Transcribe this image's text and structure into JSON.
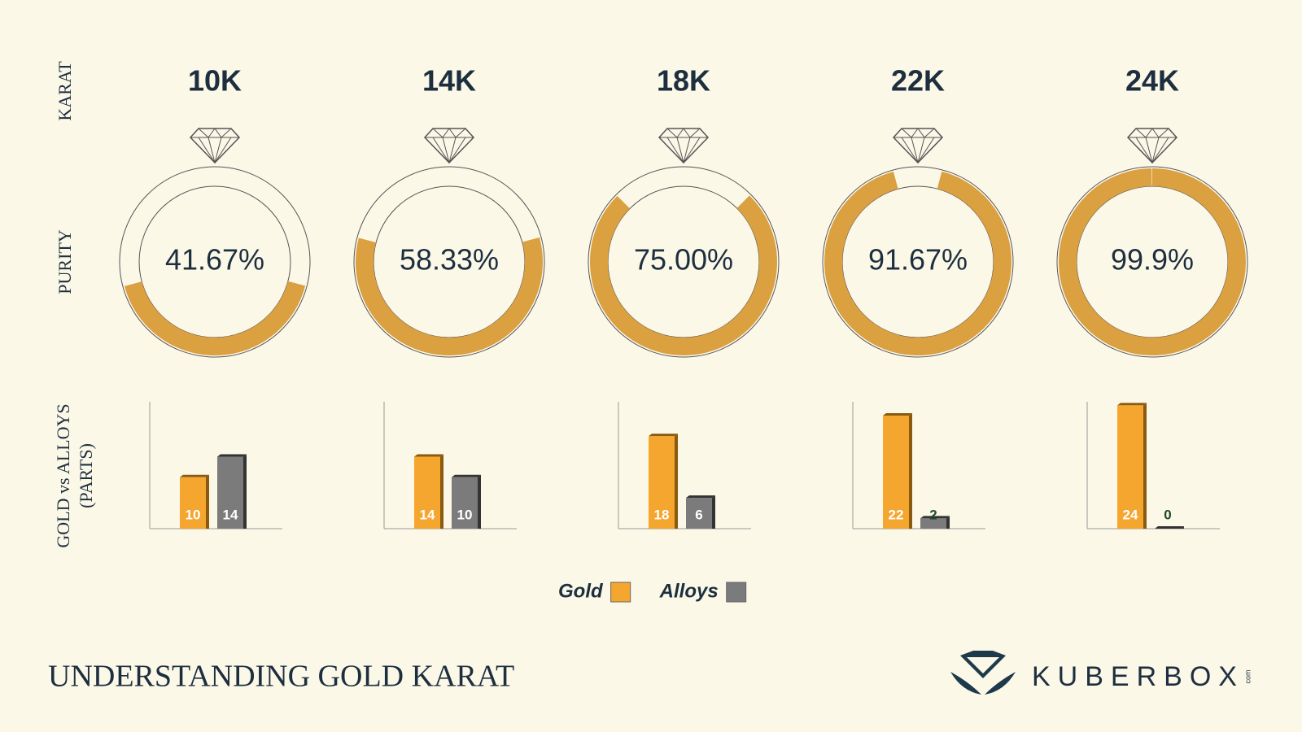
{
  "title": "UNDERSTANDING GOLD KARAT",
  "brand": "KUBERBOX",
  "brand_suffix": "com",
  "row_labels": [
    "KARAT",
    "PURITY",
    "GOLD vs ALLOYS",
    "(PARTS)"
  ],
  "chart_data": [
    {
      "type": "donut",
      "values": [
        41.67,
        58.33,
        75.0,
        91.67,
        99.9
      ],
      "value_labels": [
        "41.67%",
        "58.33%",
        "75.00%",
        "91.67%",
        "99.9%"
      ],
      "ylim": [
        0,
        100
      ],
      "color": "#dba040"
    },
    {
      "type": "bar",
      "categories": [
        "10K",
        "14K",
        "18K",
        "22K",
        "24K"
      ],
      "series": [
        {
          "name": "Gold",
          "color": "#f5a62f",
          "values": [
            10,
            14,
            18,
            22,
            24
          ]
        },
        {
          "name": "Alloys",
          "color": "#7b7b7b",
          "values": [
            14,
            10,
            6,
            2,
            0
          ]
        }
      ],
      "ylim": [
        0,
        25
      ],
      "legend": "bottom"
    }
  ]
}
